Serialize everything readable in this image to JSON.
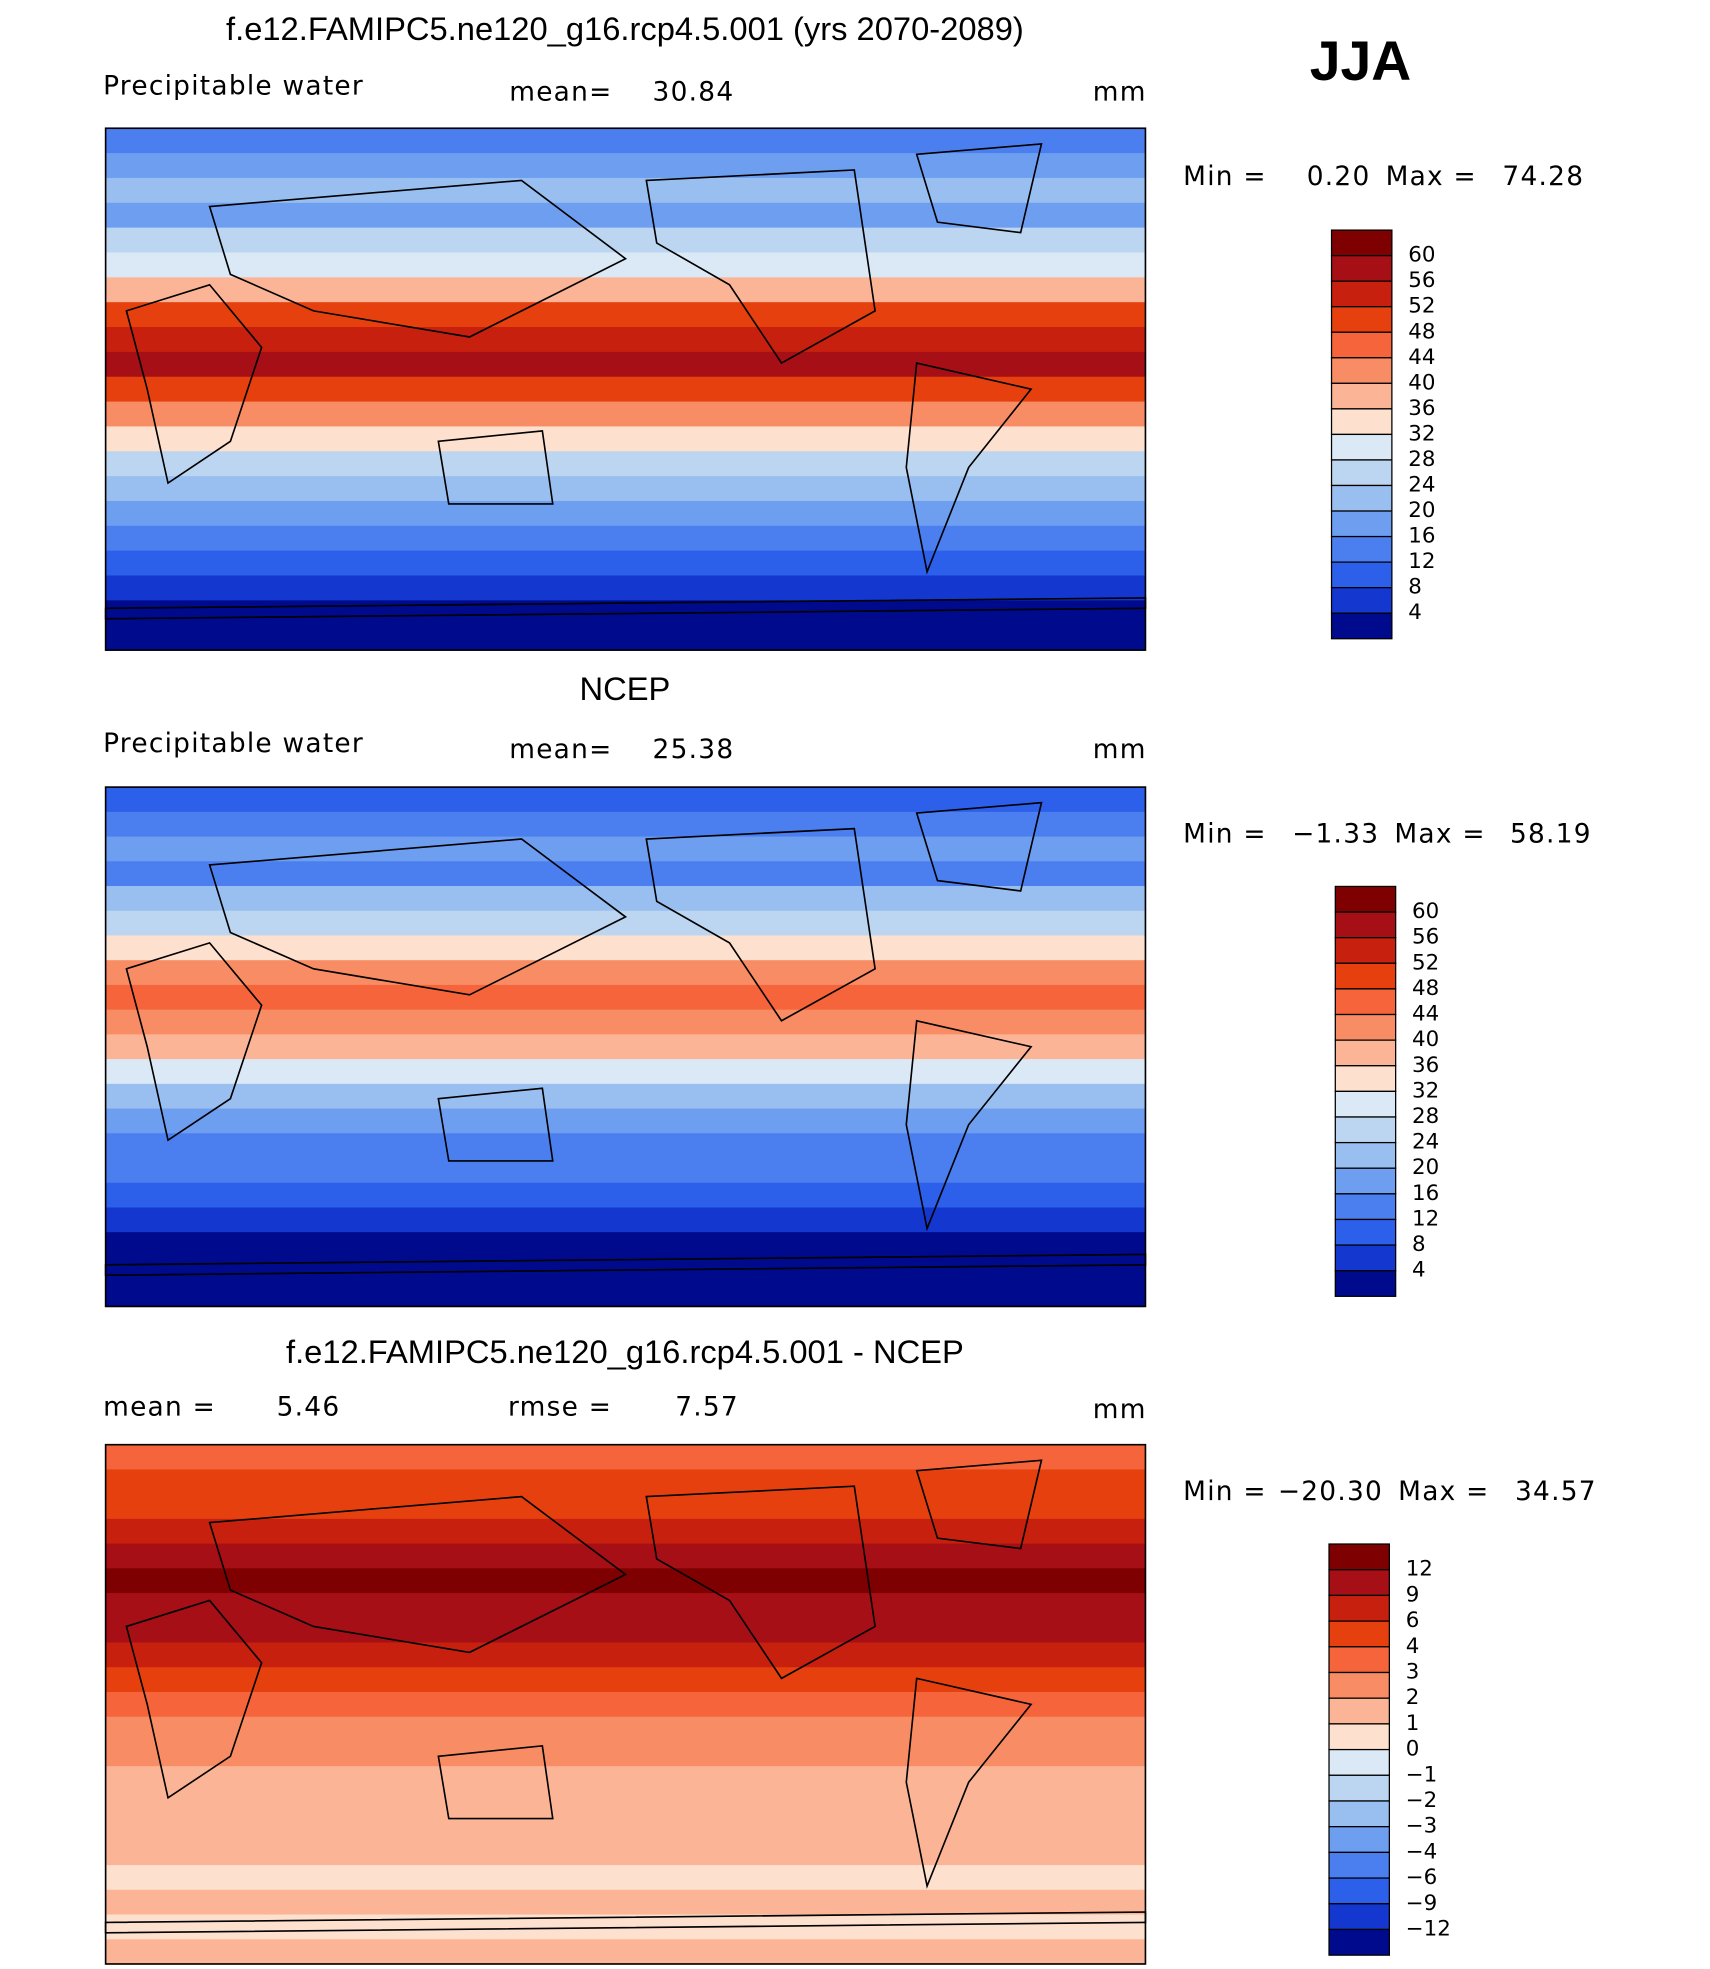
{
  "season": "JJA",
  "panels": [
    {
      "title": "f.e12.FAMIPC5.ne120_g16.rcp4.5.001 (yrs 2070-2089)",
      "variable": "Precipitable water",
      "mean_label": "mean=",
      "mean": "30.84",
      "units": "mm",
      "min_label": "Min =",
      "min": "0.20",
      "max_label": "Max =",
      "max": "74.28",
      "colorbar": {
        "labels": [
          "60",
          "56",
          "52",
          "48",
          "44",
          "40",
          "36",
          "32",
          "28",
          "24",
          "20",
          "16",
          "12",
          "8",
          "4"
        ],
        "colors": [
          "#7f0000",
          "#a50f15",
          "#c8200e",
          "#e6400f",
          "#f5643a",
          "#f88c64",
          "#fbb596",
          "#fde0cd",
          "#dbe9f6",
          "#bcd5f0",
          "#99bff0",
          "#6e9ef0",
          "#4b7ff0",
          "#2c5fea",
          "#1437d0",
          "#000a8c"
        ]
      }
    },
    {
      "title": "NCEP",
      "variable": "Precipitable water",
      "mean_label": "mean=",
      "mean": "25.38",
      "units": "mm",
      "min_label": "Min =",
      "min": "−1.33",
      "max_label": "Max =",
      "max": "58.19",
      "colorbar": {
        "labels": [
          "60",
          "56",
          "52",
          "48",
          "44",
          "40",
          "36",
          "32",
          "28",
          "24",
          "20",
          "16",
          "12",
          "8",
          "4"
        ],
        "colors": [
          "#7f0000",
          "#a50f15",
          "#c8200e",
          "#e6400f",
          "#f5643a",
          "#f88c64",
          "#fbb596",
          "#fde0cd",
          "#dbe9f6",
          "#bcd5f0",
          "#99bff0",
          "#6e9ef0",
          "#4b7ff0",
          "#2c5fea",
          "#1437d0",
          "#000a8c"
        ]
      }
    },
    {
      "title": "f.e12.FAMIPC5.ne120_g16.rcp4.5.001 - NCEP",
      "mean_label": "mean =",
      "mean": "5.46",
      "rmse_label": "rmse =",
      "rmse": "7.57",
      "units": "mm",
      "min_label": "Min =",
      "min": "−20.30",
      "max_label": "Max =",
      "max": "34.57",
      "colorbar": {
        "labels": [
          "12",
          "9",
          "6",
          "4",
          "3",
          "2",
          "1",
          "0",
          "−1",
          "−2",
          "−3",
          "−4",
          "−6",
          "−9",
          "−12"
        ],
        "colors": [
          "#7f0000",
          "#a50f15",
          "#c8200e",
          "#e6400f",
          "#f5643a",
          "#f88c64",
          "#fbb596",
          "#fde0cd",
          "#dbe9f6",
          "#bcd5f0",
          "#99bff0",
          "#6e9ef0",
          "#4b7ff0",
          "#2c5fea",
          "#1437d0",
          "#000a8c"
        ]
      }
    }
  ]
}
